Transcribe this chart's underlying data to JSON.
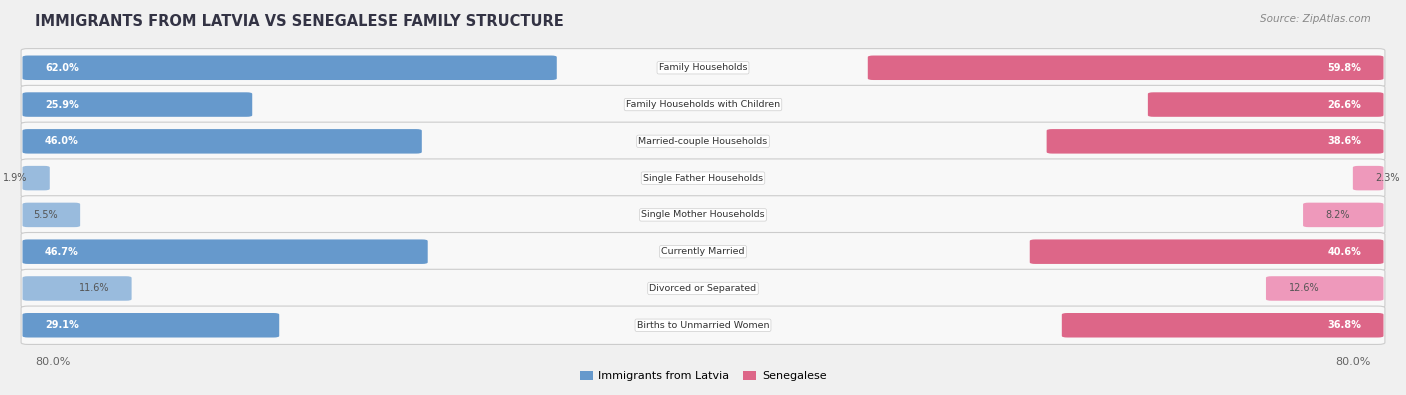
{
  "title": "IMMIGRANTS FROM LATVIA VS SENEGALESE FAMILY STRUCTURE",
  "source": "Source: ZipAtlas.com",
  "categories": [
    "Family Households",
    "Family Households with Children",
    "Married-couple Households",
    "Single Father Households",
    "Single Mother Households",
    "Currently Married",
    "Divorced or Separated",
    "Births to Unmarried Women"
  ],
  "latvia_values": [
    62.0,
    25.9,
    46.0,
    1.9,
    5.5,
    46.7,
    11.6,
    29.1
  ],
  "senegal_values": [
    59.8,
    26.6,
    38.6,
    2.3,
    8.2,
    40.6,
    12.6,
    36.8
  ],
  "latvia_color_dark": "#6699cc",
  "latvia_color_light": "#99bbdd",
  "senegal_color_dark": "#dd6688",
  "senegal_color_light": "#ee99bb",
  "axis_max": 80.0,
  "background_color": "#f0f0f0",
  "row_bg_color": "#f8f8f8",
  "legend_latvia": "Immigrants from Latvia",
  "legend_senegal": "Senegalese",
  "large_threshold": 15.0
}
